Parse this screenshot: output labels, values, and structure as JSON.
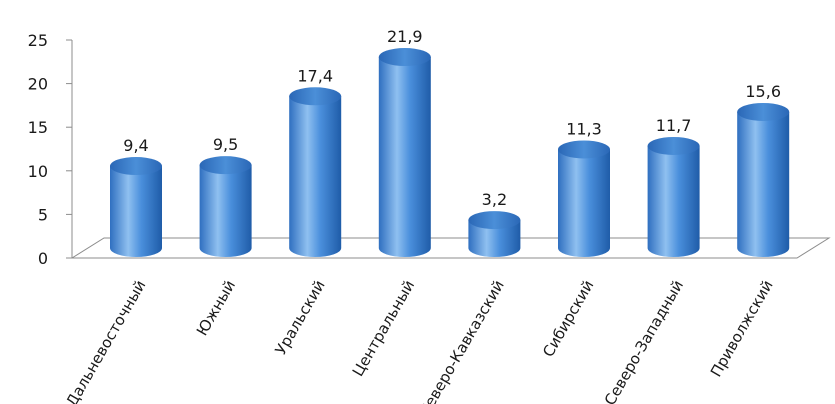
{
  "chart_data": {
    "type": "bar",
    "style": "3d-cylinder",
    "categories": [
      "Дальневосточный",
      "Южный",
      "Уральский",
      "Центральный",
      "Северо-Кавказский",
      "Сибирский",
      "Северо-Западный",
      "Приволжский"
    ],
    "values": [
      9.4,
      9.5,
      17.4,
      21.9,
      3.2,
      11.3,
      11.7,
      15.6
    ],
    "data_labels": [
      "9,4",
      "9,5",
      "17,4",
      "21,9",
      "3,2",
      "11,3",
      "11,7",
      "15,6"
    ],
    "title": "",
    "xlabel": "",
    "ylabel": "",
    "ylim": [
      0,
      25
    ],
    "yticks": [
      "0",
      "5",
      "10",
      "15",
      "20",
      "25"
    ],
    "grid": false,
    "legend": "none",
    "colors": {
      "bar_light": "#8fc0f0",
      "bar_mid": "#4a8fdc",
      "bar_dark": "#1f5ca8",
      "bar_top": "#2c6cbf",
      "axis": "#8c8c8c"
    }
  }
}
